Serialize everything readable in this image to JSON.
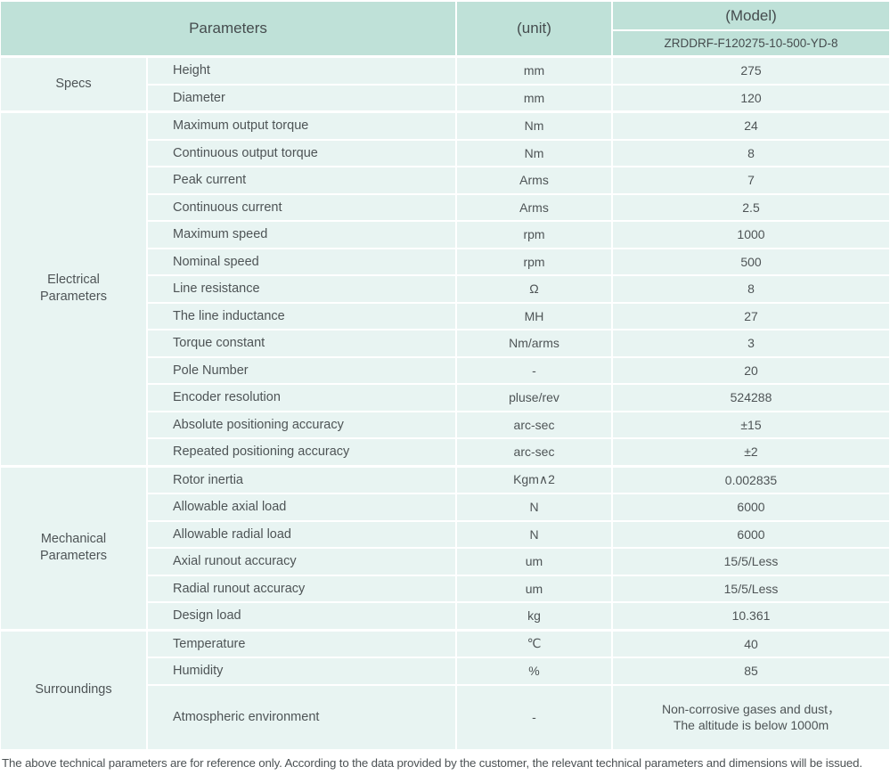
{
  "colors": {
    "header_bg": "#bfe1d8",
    "cell_bg": "#e8f4f2",
    "text": "#4e5456",
    "separator": "#ffffff"
  },
  "header": {
    "parameters_label": "Parameters",
    "unit_label": "(unit)",
    "model_label": "(Model)",
    "model_code": "ZRDDRF-F120275-10-500-YD-8"
  },
  "sections": [
    {
      "category_lines": [
        "Specs"
      ],
      "rows": [
        {
          "name": "Height",
          "unit": "mm",
          "value": "275"
        },
        {
          "name": "Diameter",
          "unit": "mm",
          "value": "120"
        }
      ]
    },
    {
      "category_lines": [
        "Electrical",
        "Parameters"
      ],
      "rows": [
        {
          "name": "Maximum output torque",
          "unit": "Nm",
          "value": "24"
        },
        {
          "name": "Continuous output torque",
          "unit": "Nm",
          "value": "8"
        },
        {
          "name": "Peak current",
          "unit": "Arms",
          "value": "7"
        },
        {
          "name": "Continuous current",
          "unit": "Arms",
          "value": "2.5"
        },
        {
          "name": "Maximum speed",
          "unit": "rpm",
          "value": "1000"
        },
        {
          "name": "Nominal speed",
          "unit": "rpm",
          "value": "500"
        },
        {
          "name": "Line resistance",
          "unit": "Ω",
          "value": "8"
        },
        {
          "name": "The line inductance",
          "unit": "MH",
          "value": "27"
        },
        {
          "name": "Torque constant",
          "unit": "Nm/arms",
          "value": "3"
        },
        {
          "name": "Pole Number",
          "unit": "-",
          "value": "20"
        },
        {
          "name": "Encoder resolution",
          "unit": "pluse/rev",
          "value": "524288"
        },
        {
          "name": "Absolute positioning accuracy",
          "unit": "arc-sec",
          "value": "±15"
        },
        {
          "name": "Repeated positioning accuracy",
          "unit": "arc-sec",
          "value": "±2"
        }
      ]
    },
    {
      "category_lines": [
        "Mechanical",
        "Parameters"
      ],
      "rows": [
        {
          "name": "Rotor inertia",
          "unit": "Kgm∧2",
          "value": "0.002835"
        },
        {
          "name": "Allowable axial load",
          "unit": "N",
          "value": "6000"
        },
        {
          "name": "Allowable radial load",
          "unit": "N",
          "value": "6000"
        },
        {
          "name": "Axial runout accuracy",
          "unit": "um",
          "value": "15/5/Less"
        },
        {
          "name": "Radial runout accuracy",
          "unit": "um",
          "value": "15/5/Less"
        },
        {
          "name": "Design load",
          "unit": "kg",
          "value": "10.361"
        }
      ]
    },
    {
      "category_lines": [
        "Surroundings"
      ],
      "rows": [
        {
          "name": "Temperature",
          "unit": "℃",
          "value": "40"
        },
        {
          "name": "Humidity",
          "unit": "%",
          "value": "85"
        },
        {
          "name": "Atmospheric environment",
          "unit": "-",
          "value_lines": [
            "Non-corrosive gases and dust，",
            "The altitude is below 1000m"
          ]
        }
      ]
    }
  ],
  "footer": {
    "note": "The above technical parameters are for reference only. According to the data provided by the customer, the relevant technical parameters and dimensions will be issued."
  }
}
